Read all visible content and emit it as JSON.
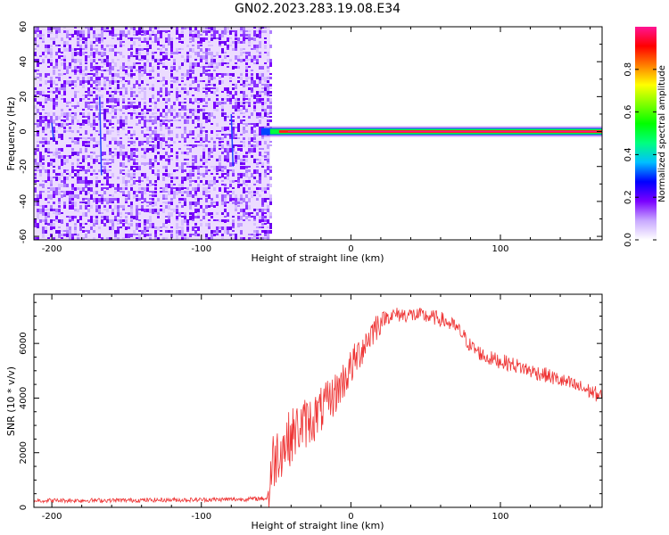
{
  "title": "GN02.2023.283.19.08.E34",
  "chart_data": [
    {
      "type": "heatmap",
      "xlabel": "Height of straight line (km)",
      "ylabel": "Frequency (Hz)",
      "xlim": [
        -212,
        168
      ],
      "ylim": [
        -62,
        60
      ],
      "xticks": [
        -200,
        -100,
        0,
        100
      ],
      "yticks": [
        -60,
        -40,
        -20,
        0,
        20,
        40,
        60
      ],
      "noise_region_x": [
        -212,
        -54
      ],
      "signal_band": {
        "x_start": -60,
        "x_end": 168,
        "frequency": 0
      },
      "colorbar": {
        "label": "Normalized spectral amplitude",
        "ticks": [
          0.0,
          0.2,
          0.4,
          0.6,
          0.8
        ],
        "range": [
          0,
          1
        ],
        "colors": [
          "#ffffff",
          "#c8a8ff",
          "#7a00ff",
          "#0000ff",
          "#00bfff",
          "#00ff7f",
          "#00ff00",
          "#7fff00",
          "#ffff00",
          "#ff8000",
          "#ff0000",
          "#ff1493"
        ]
      }
    },
    {
      "type": "line",
      "xlabel": "Height of straight line (km)",
      "ylabel": "SNR (10 * v/v)",
      "xlim": [
        -212,
        168
      ],
      "ylim": [
        0,
        7800
      ],
      "xticks": [
        -200,
        -100,
        0,
        100
      ],
      "yticks": [
        0,
        2000,
        4000,
        6000
      ],
      "color": "#ee3333",
      "x": [
        -212,
        -150,
        -100,
        -70,
        -56,
        -52,
        -48,
        -44,
        -40,
        -35,
        -30,
        -25,
        -20,
        -15,
        -10,
        -5,
        0,
        5,
        10,
        15,
        20,
        25,
        30,
        35,
        40,
        50,
        60,
        70,
        75,
        80,
        90,
        100,
        110,
        120,
        130,
        140,
        150,
        160,
        168
      ],
      "values": [
        250,
        260,
        280,
        300,
        330,
        1700,
        2100,
        2300,
        2600,
        2900,
        3100,
        3250,
        3550,
        3850,
        4200,
        4650,
        5100,
        5600,
        6050,
        6500,
        6850,
        7000,
        7050,
        7050,
        7050,
        7000,
        6900,
        6600,
        6300,
        5900,
        5500,
        5350,
        5200,
        5000,
        4850,
        4650,
        4450,
        4250,
        4050
      ]
    }
  ]
}
